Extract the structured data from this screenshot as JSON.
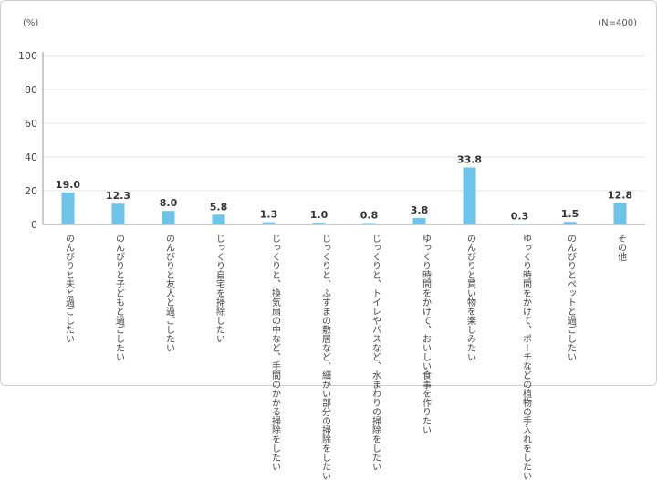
{
  "header": {
    "unit_label": "(%)",
    "sample_label": "(N=400)"
  },
  "colors": {
    "bar": "#6ec3e8",
    "axis": "#999999",
    "grid": "#e6e6e6"
  },
  "chart_data": {
    "type": "bar",
    "ylim": [
      0,
      100
    ],
    "yticks": [
      0,
      20,
      40,
      60,
      80,
      100
    ],
    "grid": true,
    "categories": [
      "のんびりと夫と過ごしたい",
      "のんびりと子どもと過ごしたい",
      "のんびりと友人と過ごしたい",
      "じっくり自宅を掃除したい",
      "じっくりと、換気扇の中など、\n手間のかかる掃除をしたい",
      "じっくりと、ふすまの敷居など、\n細かい部分の掃除をしたい",
      "じっくりと、トイレやバスなど、\n水まわりの掃除をしたい",
      "ゆっくり時間をかけて、\nおいしい食事を作りたい",
      "のんびりと買い物を楽しみたい",
      "ゆっくり時間をかけて、ポーチ\nなどの植物の手入れをしたい",
      "のんびりとペットと過ごしたい",
      "その他"
    ],
    "values": [
      19.0,
      12.3,
      8.0,
      5.8,
      1.3,
      1.0,
      0.8,
      3.8,
      33.8,
      0.3,
      1.5,
      12.8
    ],
    "value_labels": [
      "19.0",
      "12.3",
      "8.0",
      "5.8",
      "1.3",
      "1.0",
      "0.8",
      "3.8",
      "33.8",
      "0.3",
      "1.5",
      "12.8"
    ]
  }
}
